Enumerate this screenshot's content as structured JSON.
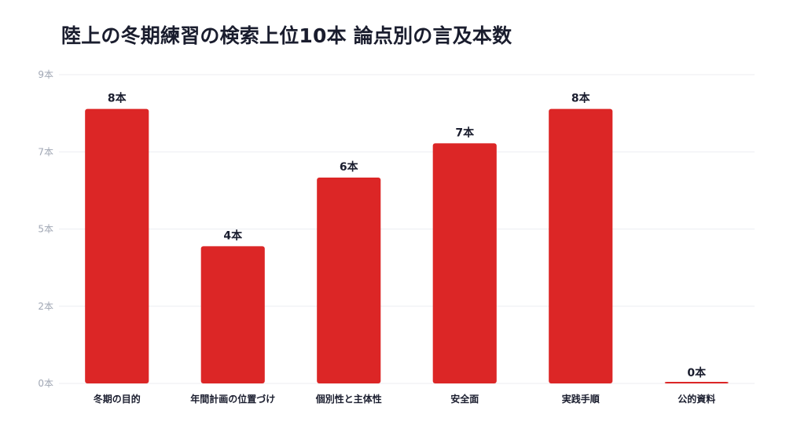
{
  "chart_data": {
    "type": "bar",
    "title": "陸上の冬期練習の検索上位10本 論点別の言及本数",
    "xlabel": "",
    "ylabel": "",
    "categories": [
      "冬期の目的",
      "年間計画の位置づけ",
      "個別性と主体性",
      "安全面",
      "実践手順",
      "公的資料"
    ],
    "values": [
      8,
      4,
      6,
      7,
      8,
      0
    ],
    "data_labels": [
      "8本",
      "4本",
      "6本",
      "7本",
      "8本",
      "0本"
    ],
    "ylim": [
      0,
      9
    ],
    "y_ticks": [
      {
        "value": 0,
        "label": "0本"
      },
      {
        "value": 2.25,
        "label": "2本"
      },
      {
        "value": 4.5,
        "label": "5本"
      },
      {
        "value": 6.75,
        "label": "7本"
      },
      {
        "value": 9,
        "label": "9本"
      }
    ],
    "grid": true,
    "legend": "none",
    "bar_color": "#dc2626"
  }
}
